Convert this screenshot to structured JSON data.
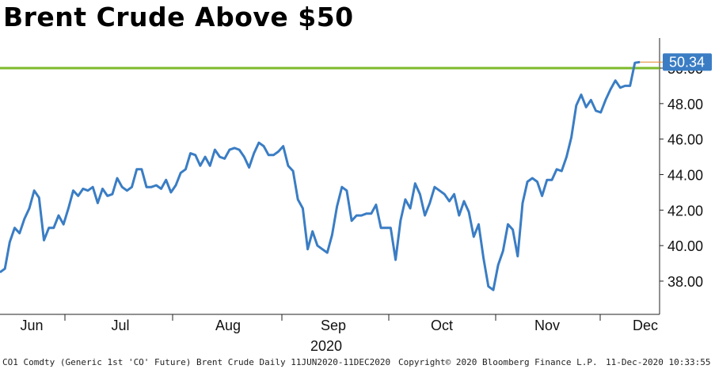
{
  "title": "Brent Crude Above $50",
  "footer": {
    "left": "CO1 Comdty (Generic 1st 'CO' Future) Brent Crude  Daily 11JUN2020-11DEC2020",
    "center": "Copyright© 2020 Bloomberg Finance L.P.",
    "right": "11-Dec-2020 10:33:55"
  },
  "colors": {
    "line": "#3a7dc4",
    "threshold": "#7cba2a",
    "last_badge": "#3a7dc4",
    "last_marker": "#e08a2a"
  },
  "chart_data": {
    "type": "line",
    "title": "Brent Crude Above $50",
    "xlabel": "2020",
    "ylabel": "",
    "ylim": [
      36.5,
      51.3
    ],
    "y_ticks": [
      "38.00",
      "40.00",
      "42.00",
      "44.00",
      "46.00",
      "48.00",
      "50.00"
    ],
    "x_ticks": [
      "Jun",
      "Jul",
      "Aug",
      "Sep",
      "Oct",
      "Nov",
      "Dec"
    ],
    "year_label": "2020",
    "threshold": 50,
    "last_value": "50.34",
    "grid": false,
    "series": [
      {
        "values": [
          38.5,
          38.7,
          40.2,
          41.0,
          40.7,
          41.5,
          42.1,
          43.1,
          42.7,
          40.3,
          41.0,
          41.0,
          41.7,
          41.2,
          42.1,
          43.1,
          42.8,
          43.2,
          43.1,
          43.3,
          42.4,
          43.2,
          42.8,
          42.9,
          43.8,
          43.3,
          43.1,
          43.3,
          44.3,
          44.3,
          43.3,
          43.3,
          43.4,
          43.2,
          43.7,
          43.0,
          43.4,
          44.1,
          44.3,
          45.2,
          45.1,
          44.5,
          45.0,
          44.5,
          45.4,
          45.0,
          44.9,
          45.4,
          45.5,
          45.4,
          45.0,
          44.4,
          45.2,
          45.8,
          45.6,
          45.1,
          45.1,
          45.3,
          45.6,
          44.5,
          44.2,
          42.6,
          42.1,
          39.8,
          40.8,
          40.0,
          39.8,
          39.6,
          40.6,
          42.2,
          43.3,
          43.1,
          41.4,
          41.7,
          41.7,
          41.8,
          41.8,
          42.3,
          41.0,
          41.0,
          41.0,
          39.2,
          41.4,
          42.6,
          42.1,
          43.5,
          42.9,
          41.7,
          42.4,
          43.3,
          43.1,
          42.9,
          42.5,
          42.9,
          41.7,
          42.5,
          41.9,
          40.5,
          41.2,
          39.3,
          37.7,
          37.5,
          38.9,
          39.7,
          41.2,
          40.9,
          39.4,
          42.4,
          43.6,
          43.8,
          43.6,
          42.8,
          43.7,
          43.7,
          44.3,
          44.2,
          45.0,
          46.1,
          47.9,
          48.5,
          47.8,
          48.2,
          47.6,
          47.5,
          48.2,
          48.8,
          49.3,
          48.9,
          49.0,
          49.0,
          50.3,
          50.34
        ]
      }
    ]
  }
}
